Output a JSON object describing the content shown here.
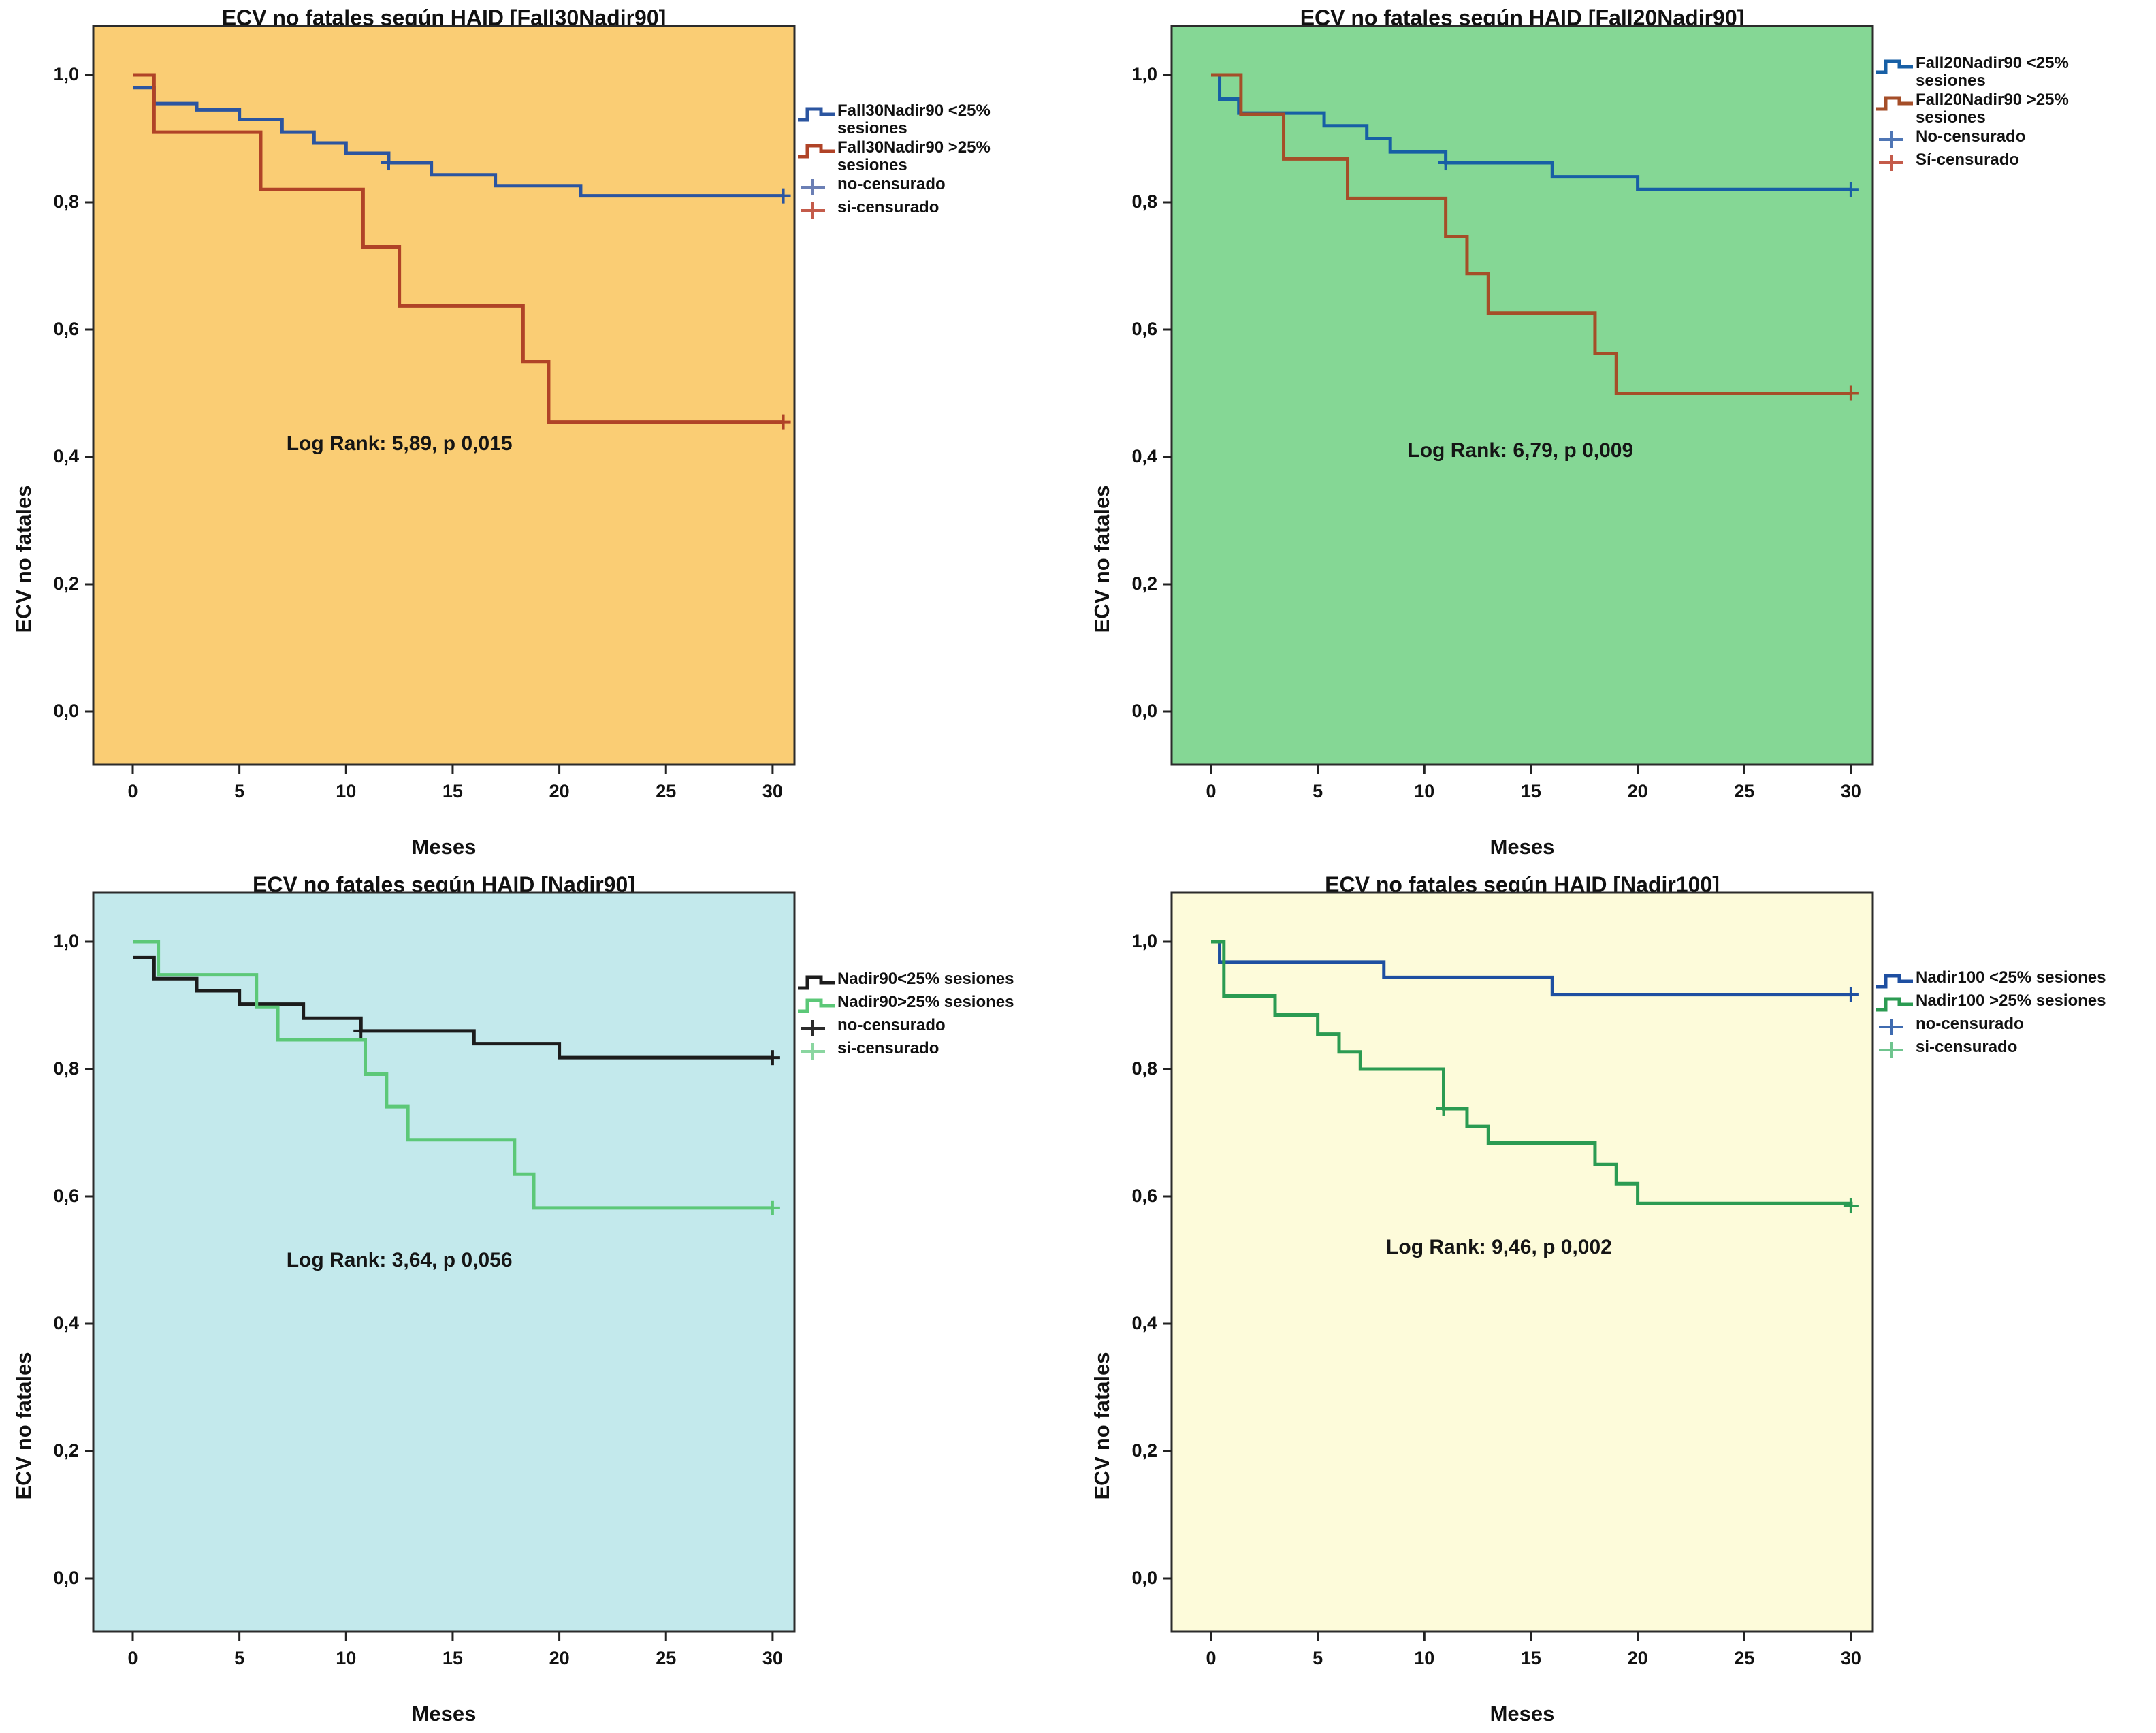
{
  "figure": {
    "xlabel": "Meses",
    "ylabel": "ECV no fatales"
  },
  "chart_data": [
    {
      "type": "line",
      "subtype": "kaplan-meier-step",
      "title": "ECV no fatales según HAID [Fall30Nadir90]",
      "xlabel": "Meses",
      "ylabel": "ECV no fatales",
      "background": "#FACD74",
      "border_color": "#2B2B2B",
      "xlim": [
        -2,
        32
      ],
      "ylim": [
        -0.08,
        1.08
      ],
      "grid": false,
      "xticks": [
        0,
        5,
        10,
        15,
        20,
        25,
        30
      ],
      "yticks": [
        {
          "label": "0,0",
          "value": 0.0
        },
        {
          "label": "0,2",
          "value": 0.2
        },
        {
          "label": "0,4",
          "value": 0.4
        },
        {
          "label": "0,6",
          "value": 0.6
        },
        {
          "label": "0,8",
          "value": 0.8
        },
        {
          "label": "1,0",
          "value": 1.0
        }
      ],
      "annotation": "Log Rank: 5,89, p 0,015",
      "annotation_pos": {
        "x": 12.5,
        "y": 0.42
      },
      "legend_position": "right",
      "legend": [
        {
          "label": "Fall30Nadir90 <25% sesiones",
          "color": "#2B55A0",
          "marker": "step"
        },
        {
          "label": "Fall30Nadir90 >25% sesiones",
          "color": "#B04327",
          "marker": "step"
        },
        {
          "label": "no-censurado",
          "color": "#6B7FB5",
          "marker": "plus"
        },
        {
          "label": "si-censurado",
          "color": "#C45B4A",
          "marker": "plus"
        }
      ],
      "series": [
        {
          "name": "Fall30Nadir90 <25% sesiones",
          "color": "#2B55A0",
          "points": [
            [
              0,
              0.98
            ],
            [
              1,
              0.955
            ],
            [
              3,
              0.945
            ],
            [
              5,
              0.93
            ],
            [
              7,
              0.91
            ],
            [
              8.5,
              0.893
            ],
            [
              10,
              0.877
            ],
            [
              12,
              0.862
            ],
            [
              14,
              0.843
            ],
            [
              17,
              0.826
            ],
            [
              21,
              0.81
            ],
            [
              30.5,
              0.81
            ]
          ],
          "censors": [
            [
              12,
              0.862
            ],
            [
              30.5,
              0.81
            ]
          ]
        },
        {
          "name": "Fall30Nadir90 >25% sesiones",
          "color": "#B04327",
          "points": [
            [
              0,
              1.0
            ],
            [
              1,
              0.91
            ],
            [
              6,
              0.82
            ],
            [
              10.8,
              0.73
            ],
            [
              12.5,
              0.637
            ],
            [
              18.3,
              0.55
            ],
            [
              19.5,
              0.455
            ],
            [
              30.5,
              0.455
            ]
          ],
          "censors": [
            [
              30.5,
              0.455
            ]
          ]
        }
      ]
    },
    {
      "type": "line",
      "subtype": "kaplan-meier-step",
      "title": "ECV no fatales según HAID [Fall20Nadir90]",
      "xlabel": "Meses",
      "ylabel": "ECV no fatales",
      "background": "#85D795",
      "border_color": "#2B2B2B",
      "xlim": [
        -2,
        32
      ],
      "ylim": [
        -0.08,
        1.08
      ],
      "grid": false,
      "xticks": [
        0,
        5,
        10,
        15,
        20,
        25,
        30
      ],
      "yticks": [
        {
          "label": "0,0",
          "value": 0.0
        },
        {
          "label": "0,2",
          "value": 0.2
        },
        {
          "label": "0,4",
          "value": 0.4
        },
        {
          "label": "0,6",
          "value": 0.6
        },
        {
          "label": "0,8",
          "value": 0.8
        },
        {
          "label": "1,0",
          "value": 1.0
        }
      ],
      "annotation": "Log Rank: 6,79, p 0,009",
      "annotation_pos": {
        "x": 14.5,
        "y": 0.41
      },
      "legend_position": "right",
      "legend": [
        {
          "label": "Fall20Nadir90 <25% sesiones",
          "color": "#175FA5",
          "marker": "step"
        },
        {
          "label": "Fall20Nadir90 >25% sesiones",
          "color": "#A54E28",
          "marker": "step"
        },
        {
          "label": "No-censurado",
          "color": "#4F76B5",
          "marker": "plus"
        },
        {
          "label": "Sí-censurado",
          "color": "#C45B4A",
          "marker": "plus"
        }
      ],
      "series": [
        {
          "name": "Fall20Nadir90 <25% sesiones",
          "color": "#175FA5",
          "points": [
            [
              0,
              1.0
            ],
            [
              0.4,
              0.962
            ],
            [
              1.3,
              0.94
            ],
            [
              5.3,
              0.92
            ],
            [
              7.3,
              0.9
            ],
            [
              8.4,
              0.879
            ],
            [
              11,
              0.862
            ],
            [
              16,
              0.84
            ],
            [
              20,
              0.82
            ],
            [
              30,
              0.82
            ]
          ],
          "censors": [
            [
              11,
              0.862
            ],
            [
              30,
              0.82
            ]
          ]
        },
        {
          "name": "Fall20Nadir90 >25% sesiones",
          "color": "#A54E28",
          "points": [
            [
              0,
              1.0
            ],
            [
              1.4,
              0.938
            ],
            [
              3.4,
              0.868
            ],
            [
              6.4,
              0.806
            ],
            [
              11,
              0.746
            ],
            [
              12,
              0.688
            ],
            [
              13,
              0.626
            ],
            [
              18,
              0.562
            ],
            [
              19,
              0.5
            ],
            [
              30,
              0.5
            ]
          ],
          "censors": [
            [
              30,
              0.5
            ]
          ]
        }
      ]
    },
    {
      "type": "line",
      "subtype": "kaplan-meier-step",
      "title": "ECV no fatales según HAID [Nadir90]",
      "xlabel": "Meses",
      "ylabel": "ECV no fatales",
      "background": "#C3E9EC",
      "border_color": "#2B2B2B",
      "xlim": [
        -2,
        32
      ],
      "ylim": [
        -0.08,
        1.08
      ],
      "grid": false,
      "xticks": [
        0,
        5,
        10,
        15,
        20,
        25,
        30
      ],
      "yticks": [
        {
          "label": "0,0",
          "value": 0.0
        },
        {
          "label": "0,2",
          "value": 0.2
        },
        {
          "label": "0,4",
          "value": 0.4
        },
        {
          "label": "0,6",
          "value": 0.6
        },
        {
          "label": "0,8",
          "value": 0.8
        },
        {
          "label": "1,0",
          "value": 1.0
        }
      ],
      "annotation": "Log Rank: 3,64, p 0,056",
      "annotation_pos": {
        "x": 12.5,
        "y": 0.5
      },
      "legend_position": "right",
      "legend": [
        {
          "label": "Nadir90<25% sesiones",
          "color": "#1C1C1C",
          "marker": "step"
        },
        {
          "label": "Nadir90>25% sesiones",
          "color": "#5CC878",
          "marker": "step"
        },
        {
          "label": "no-censurado",
          "color": "#2B2B2B",
          "marker": "plus"
        },
        {
          "label": "si-censurado",
          "color": "#8AD6A0",
          "marker": "plus"
        }
      ],
      "series": [
        {
          "name": "Nadir90<25% sesiones",
          "color": "#1C1C1C",
          "points": [
            [
              0,
              0.975
            ],
            [
              1,
              0.942
            ],
            [
              3,
              0.923
            ],
            [
              5,
              0.902
            ],
            [
              8,
              0.88
            ],
            [
              10.7,
              0.86
            ],
            [
              16,
              0.84
            ],
            [
              20,
              0.818
            ],
            [
              30,
              0.818
            ]
          ],
          "censors": [
            [
              10.7,
              0.86
            ],
            [
              30,
              0.818
            ]
          ]
        },
        {
          "name": "Nadir90>25% sesiones",
          "color": "#5CC878",
          "points": [
            [
              0,
              1.0
            ],
            [
              1.2,
              0.948
            ],
            [
              5.8,
              0.897
            ],
            [
              6.8,
              0.846
            ],
            [
              10.9,
              0.792
            ],
            [
              11.9,
              0.741
            ],
            [
              12.9,
              0.689
            ],
            [
              17.9,
              0.635
            ],
            [
              18.8,
              0.582
            ],
            [
              30,
              0.582
            ]
          ],
          "censors": [
            [
              30,
              0.582
            ]
          ]
        }
      ]
    },
    {
      "type": "line",
      "subtype": "kaplan-meier-step",
      "title": "ECV no fatales según HAID [Nadir100]",
      "xlabel": "Meses",
      "ylabel": "ECV no fatales",
      "background": "#FDFBDA",
      "border_color": "#2B2B2B",
      "xlim": [
        -2,
        32
      ],
      "ylim": [
        -0.08,
        1.08
      ],
      "grid": false,
      "xticks": [
        0,
        5,
        10,
        15,
        20,
        25,
        30
      ],
      "yticks": [
        {
          "label": "0,0",
          "value": 0.0
        },
        {
          "label": "0,2",
          "value": 0.2
        },
        {
          "label": "0,4",
          "value": 0.4
        },
        {
          "label": "0,6",
          "value": 0.6
        },
        {
          "label": "0,8",
          "value": 0.8
        },
        {
          "label": "1,0",
          "value": 1.0
        }
      ],
      "annotation": "Log Rank: 9,46, p 0,002",
      "annotation_pos": {
        "x": 13.5,
        "y": 0.52
      },
      "legend_position": "right",
      "legend": [
        {
          "label": "Nadir100 <25% sesiones",
          "color": "#1E4FA1",
          "marker": "step"
        },
        {
          "label": "Nadir100 >25% sesiones",
          "color": "#2B9B52",
          "marker": "step"
        },
        {
          "label": "no-censurado",
          "color": "#3F6BB0",
          "marker": "plus"
        },
        {
          "label": "si-censurado",
          "color": "#6FC48E",
          "marker": "plus"
        }
      ],
      "series": [
        {
          "name": "Nadir100 <25% sesiones",
          "color": "#1E4FA1",
          "points": [
            [
              0,
              1.0
            ],
            [
              0.4,
              0.968
            ],
            [
              8.1,
              0.944
            ],
            [
              16,
              0.917
            ],
            [
              30,
              0.917
            ]
          ],
          "censors": [
            [
              30,
              0.917
            ]
          ]
        },
        {
          "name": "Nadir100 >25% sesiones",
          "color": "#2B9B52",
          "points": [
            [
              0,
              1.0
            ],
            [
              0.6,
              0.915
            ],
            [
              3,
              0.885
            ],
            [
              5,
              0.855
            ],
            [
              6,
              0.827
            ],
            [
              7,
              0.8
            ],
            [
              10.9,
              0.738
            ],
            [
              12,
              0.71
            ],
            [
              13,
              0.684
            ],
            [
              18,
              0.65
            ],
            [
              19,
              0.62
            ],
            [
              20,
              0.589
            ],
            [
              30,
              0.585
            ]
          ],
          "censors": [
            [
              10.9,
              0.738
            ],
            [
              30,
              0.585
            ]
          ]
        }
      ]
    }
  ]
}
